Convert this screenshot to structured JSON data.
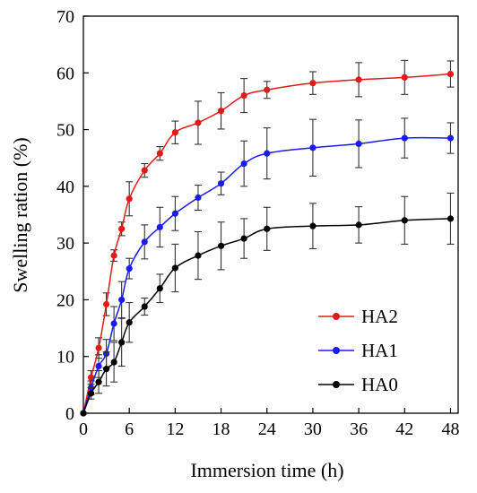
{
  "chart_data": {
    "type": "line",
    "xlabel": "Immersion time (h)",
    "ylabel": "Swelling ration (%)",
    "xlim": [
      0,
      49
    ],
    "ylim": [
      0,
      70
    ],
    "xticks": [
      0,
      6,
      12,
      18,
      24,
      30,
      36,
      42,
      48
    ],
    "yticks": [
      0,
      10,
      20,
      30,
      40,
      50,
      60,
      70
    ],
    "grid": false,
    "legend_position": "right",
    "error_bars": true,
    "series": [
      {
        "name": "HA2",
        "color": "#e41a1a",
        "x": [
          0,
          1,
          2,
          3,
          4,
          5,
          6,
          8,
          10,
          12,
          15,
          18,
          21,
          24,
          30,
          36,
          42,
          48
        ],
        "y": [
          0,
          6.3,
          11.5,
          19.2,
          27.8,
          32.5,
          37.8,
          42.8,
          45.8,
          49.5,
          51.2,
          53.3,
          56.0,
          57.0,
          58.2,
          58.8,
          59.2,
          59.8
        ],
        "err": [
          0,
          1.2,
          1.8,
          2.0,
          1.0,
          1.2,
          3.0,
          1.2,
          1.2,
          2.0,
          3.8,
          3.2,
          3.0,
          1.5,
          2.0,
          3.0,
          3.0,
          2.3
        ]
      },
      {
        "name": "HA1",
        "color": "#1a1aff",
        "x": [
          0,
          1,
          2,
          3,
          4,
          5,
          6,
          8,
          10,
          12,
          15,
          18,
          21,
          24,
          30,
          36,
          42,
          48
        ],
        "y": [
          0,
          4.5,
          8.3,
          10.5,
          15.8,
          20.0,
          25.5,
          30.2,
          32.8,
          35.2,
          38.0,
          40.5,
          44.0,
          45.8,
          46.8,
          47.5,
          48.5,
          48.5
        ],
        "err": [
          0,
          1.2,
          2.0,
          2.5,
          3.0,
          3.2,
          1.8,
          3.0,
          3.5,
          3.0,
          2.2,
          2.0,
          4.0,
          4.5,
          5.0,
          4.2,
          3.5,
          2.7
        ]
      },
      {
        "name": "HA0",
        "color": "#000000",
        "x": [
          0,
          1,
          2,
          3,
          4,
          5,
          6,
          8,
          10,
          12,
          15,
          18,
          21,
          24,
          30,
          36,
          42,
          48
        ],
        "y": [
          0,
          3.5,
          5.5,
          7.8,
          9.0,
          12.5,
          16.0,
          18.8,
          22.0,
          25.6,
          27.8,
          29.5,
          30.8,
          32.5,
          33.0,
          33.2,
          34.0,
          34.3
        ],
        "err": [
          0,
          1.0,
          2.0,
          3.0,
          3.5,
          4.2,
          3.5,
          1.5,
          2.5,
          4.2,
          4.2,
          4.2,
          3.5,
          3.8,
          4.0,
          3.2,
          4.2,
          4.5
        ]
      }
    ]
  }
}
